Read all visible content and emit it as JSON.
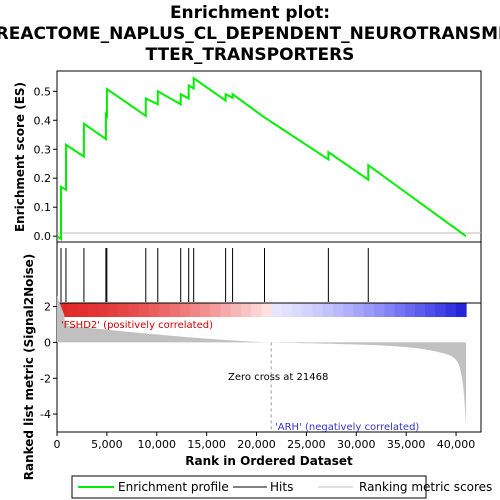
{
  "chart_data": {
    "type": "line",
    "title_lines": [
      "Enrichment plot:",
      "REACTOME_NAPLUS_CL_DEPENDENT_NEUROTRANSMI",
      "TTER_TRANSPORTERS"
    ],
    "es_panel": {
      "ylabel": "Enrichment score (ES)",
      "y_ticks": [
        "0.0",
        "0.1",
        "0.2",
        "0.3",
        "0.4",
        "0.5"
      ],
      "ylim": [
        -0.02,
        0.57
      ],
      "series": [
        {
          "name": "Enrichment profile",
          "color": "#00ee00",
          "x": [
            0,
            400,
            400,
            900,
            900,
            2700,
            2700,
            4900,
            4900,
            5000,
            5000,
            8900,
            8900,
            10100,
            10100,
            12400,
            12400,
            13200,
            13200,
            13700,
            13700,
            16900,
            16900,
            17600,
            17600,
            20800,
            20800,
            27200,
            27200,
            31200,
            31200,
            41000
          ],
          "y": [
            0,
            -0.01,
            0.17,
            0.16,
            0.315,
            0.275,
            0.388,
            0.335,
            0.42,
            0.415,
            0.508,
            0.415,
            0.475,
            0.455,
            0.5,
            0.455,
            0.49,
            0.475,
            0.52,
            0.51,
            0.545,
            0.468,
            0.49,
            0.478,
            0.49,
            0.41,
            0.41,
            0.265,
            0.29,
            0.195,
            0.245,
            0.0
          ]
        }
      ]
    },
    "hits": [
      400,
      900,
      2700,
      4900,
      5000,
      8900,
      10100,
      12400,
      13200,
      13700,
      16900,
      17600,
      20800,
      27200,
      31200
    ],
    "rank_panel": {
      "ylabel": "Ranked list metric (Signal2Noise)",
      "y_ticks": [
        "-4",
        "-2",
        "0",
        "2"
      ],
      "ylim": [
        -5,
        2.2
      ],
      "zero_cross_label": "Zero cross at 21468",
      "zero_cross": 21468,
      "pos_label": "'FSHD2' (positively correlated)",
      "neg_label": "'ARH' (negatively correlated)"
    },
    "x_axis": {
      "xlabel": "Rank in Ordered Dataset",
      "x_ticks": [
        "0",
        "5,000",
        "10,000",
        "15,000",
        "20,000",
        "25,000",
        "30,000",
        "35,000",
        "40,000"
      ],
      "xlim": [
        0,
        42500
      ],
      "n": 41000
    },
    "legend": {
      "items": [
        "Enrichment profile",
        "Hits",
        "Ranking metric scores"
      ],
      "placement": "bottom"
    }
  }
}
